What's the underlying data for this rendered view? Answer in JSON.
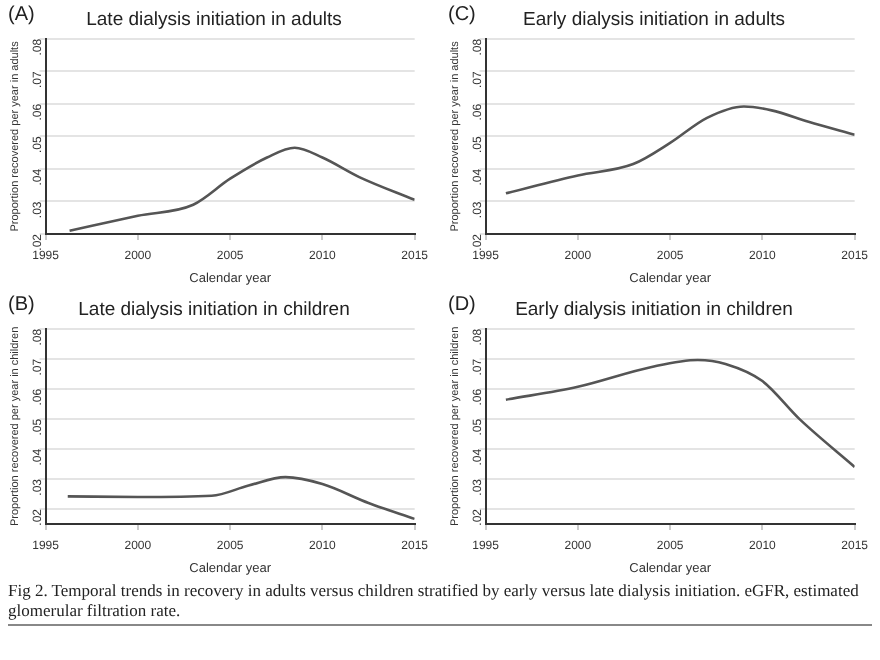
{
  "chart_data": [
    {
      "type": "line",
      "title": "Late dialysis initiation in adults",
      "xlabel": "Calendar year",
      "ylabel": "Proportion recovered per year in adults",
      "annotations": [
        "(A)"
      ],
      "grid": "y",
      "legend": false,
      "x": [
        1996.3,
        2000,
        2003,
        2005,
        2007,
        2008.5,
        2010,
        2012,
        2015
      ],
      "series": [
        {
          "color": "#555555",
          "values": [
            0.021,
            0.0256,
            0.029,
            0.037,
            0.0435,
            0.0465,
            0.0435,
            0.0375,
            0.0305
          ]
        }
      ],
      "xlim": [
        1995,
        2015
      ],
      "xticks": [
        1995,
        2000,
        2005,
        2010,
        2015
      ],
      "ylim": [
        0.02,
        0.08
      ],
      "yticks": [
        {
          "value": 0.02,
          "label": ".02"
        },
        {
          "value": 0.03,
          "label": ".03"
        },
        {
          "value": 0.04,
          "label": ".04"
        },
        {
          "value": 0.05,
          "label": ".05"
        },
        {
          "value": 0.06,
          "label": ".06"
        },
        {
          "value": 0.07,
          "label": ".07"
        },
        {
          "value": 0.08,
          "label": ".08"
        }
      ]
    },
    {
      "type": "line",
      "title": "Early dialysis initiation in adults",
      "xlabel": "Calendar year",
      "ylabel": "Proportion recovered per year in adults",
      "annotations": [
        "(C)"
      ],
      "grid": "y",
      "legend": false,
      "x": [
        1996.1,
        2000,
        2003,
        2005,
        2007,
        2009,
        2010.5,
        2012.5,
        2015
      ],
      "series": [
        {
          "color": "#555555",
          "values": [
            0.0325,
            0.038,
            0.0415,
            0.048,
            0.0557,
            0.0592,
            0.058,
            0.0545,
            0.0505
          ]
        }
      ],
      "xlim": [
        1995,
        2015
      ],
      "xticks": [
        1995,
        2000,
        2005,
        2010,
        2015
      ],
      "ylim": [
        0.02,
        0.08
      ],
      "yticks": [
        {
          "value": 0.02,
          "label": ".02"
        },
        {
          "value": 0.03,
          "label": ".03"
        },
        {
          "value": 0.04,
          "label": ".04"
        },
        {
          "value": 0.05,
          "label": ".05"
        },
        {
          "value": 0.06,
          "label": ".06"
        },
        {
          "value": 0.07,
          "label": ".07"
        },
        {
          "value": 0.08,
          "label": ".08"
        }
      ]
    },
    {
      "type": "line",
      "title": "Late dialysis initiation in children",
      "xlabel": "Calendar year",
      "ylabel": "Proportion recovered per year in children",
      "annotations": [
        "(B)"
      ],
      "grid": "y",
      "legend": false,
      "x": [
        1996.2,
        2000,
        2004,
        2006,
        2008,
        2010,
        2012.5,
        2015
      ],
      "series": [
        {
          "color": "#555555",
          "values": [
            0.0242,
            0.024,
            0.0244,
            0.0278,
            0.0306,
            0.0283,
            0.022,
            0.0167
          ]
        }
      ],
      "xlim": [
        1995,
        2015
      ],
      "xticks": [
        1995,
        2000,
        2005,
        2010,
        2015
      ],
      "ylim": [
        0.015,
        0.08
      ],
      "yticks": [
        {
          "value": 0.02,
          "label": ".02"
        },
        {
          "value": 0.03,
          "label": ".03"
        },
        {
          "value": 0.04,
          "label": ".04"
        },
        {
          "value": 0.05,
          "label": ".05"
        },
        {
          "value": 0.06,
          "label": ".06"
        },
        {
          "value": 0.07,
          "label": ".07"
        },
        {
          "value": 0.08,
          "label": ".08"
        }
      ]
    },
    {
      "type": "line",
      "title": "Early dialysis initiation in children",
      "xlabel": "Calendar year",
      "ylabel": "Proportion recovered per year in children",
      "annotations": [
        "(D)",
        "Fig 2. Temporal trends in recovery in adults versus children stratified by early versus late dialysis initiation. eGFR, estimated glomerular filtration rate."
      ],
      "grid": "y",
      "legend": false,
      "x": [
        1996.1,
        2000,
        2004,
        2006.5,
        2008,
        2010,
        2012,
        2015
      ],
      "series": [
        {
          "color": "#555555",
          "values": [
            0.0564,
            0.0607,
            0.0673,
            0.0696,
            0.0683,
            0.0626,
            0.05,
            0.034
          ]
        }
      ],
      "xlim": [
        1995,
        2015
      ],
      "xticks": [
        1995,
        2000,
        2005,
        2010,
        2015
      ],
      "ylim": [
        0.015,
        0.08
      ],
      "yticks": [
        {
          "value": 0.02,
          "label": ".02"
        },
        {
          "value": 0.03,
          "label": ".03"
        },
        {
          "value": 0.04,
          "label": ".04"
        },
        {
          "value": 0.05,
          "label": ".05"
        },
        {
          "value": 0.06,
          "label": ".06"
        },
        {
          "value": 0.07,
          "label": ".07"
        },
        {
          "value": 0.08,
          "label": ".08"
        }
      ]
    }
  ]
}
